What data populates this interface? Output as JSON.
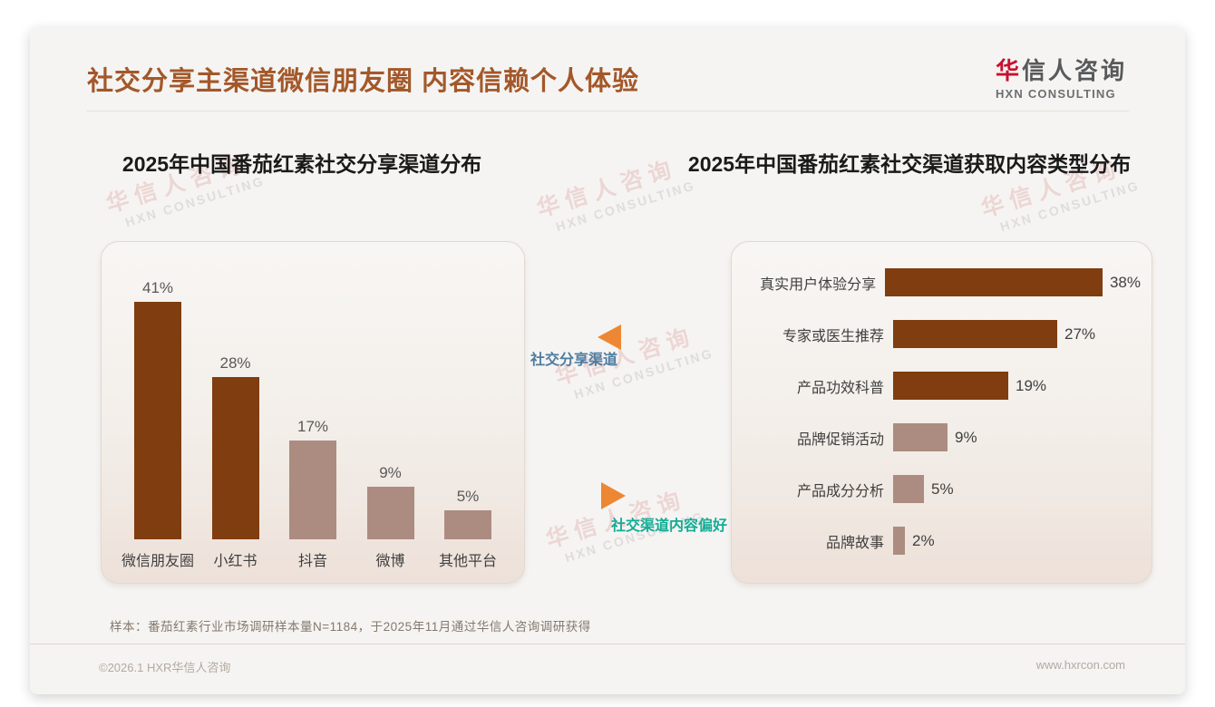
{
  "header": {
    "title": "社交分享主渠道微信朋友圈 内容信赖个人体验",
    "logo": {
      "cn_first": "华",
      "cn_rest": "信人咨询",
      "en": "HXN CONSULTING",
      "red": "#C8102E",
      "gray": "#58595B"
    }
  },
  "watermark": {
    "line1": "华信人咨询",
    "line2": "HXN CONSULTING"
  },
  "center_labels": {
    "share_channel": {
      "text": "社交分享渠道",
      "color": "#4E7CA0",
      "arrow": "left",
      "arrow_color": "#ED8733"
    },
    "content_pref": {
      "text": "社交渠道内容偏好",
      "color": "#14AC96",
      "arrow": "right",
      "arrow_color": "#ED8733"
    }
  },
  "chart_data": [
    {
      "type": "bar",
      "orientation": "vertical",
      "title": "2025年中国番茄红素社交分享渠道分布",
      "categories": [
        "微信朋友圈",
        "小红书",
        "抖音",
        "微博",
        "其他平台"
      ],
      "values": [
        41,
        28,
        17,
        9,
        5
      ],
      "unit": "%",
      "bar_colors": [
        "#7F3D10",
        "#7F3D10",
        "#AC8C80",
        "#AC8C80",
        "#AC8C80"
      ],
      "ylim": [
        0,
        45
      ],
      "grid": false,
      "value_labels": true,
      "legend": "none"
    },
    {
      "type": "bar",
      "orientation": "horizontal",
      "title": "2025年中国番茄红素社交渠道获取内容类型分布",
      "categories": [
        "真实用户体验分享",
        "专家或医生推荐",
        "产品功效科普",
        "品牌促销活动",
        "产品成分分析",
        "品牌故事"
      ],
      "values": [
        38,
        27,
        19,
        9,
        5,
        2
      ],
      "unit": "%",
      "bar_colors": [
        "#7F3D10",
        "#7F3D10",
        "#7F3D10",
        "#AC8C80",
        "#AC8C80",
        "#AC8C80"
      ],
      "xlim": [
        0,
        40
      ],
      "grid": false,
      "value_labels": true,
      "legend": "none"
    }
  ],
  "footnote": "样本：番茄红素行业市场调研样本量N=1184，于2025年11月通过华信人咨询调研获得",
  "footer": {
    "left": "©2026.1 HXR华信人咨询",
    "right": "www.hxrcon.com"
  }
}
